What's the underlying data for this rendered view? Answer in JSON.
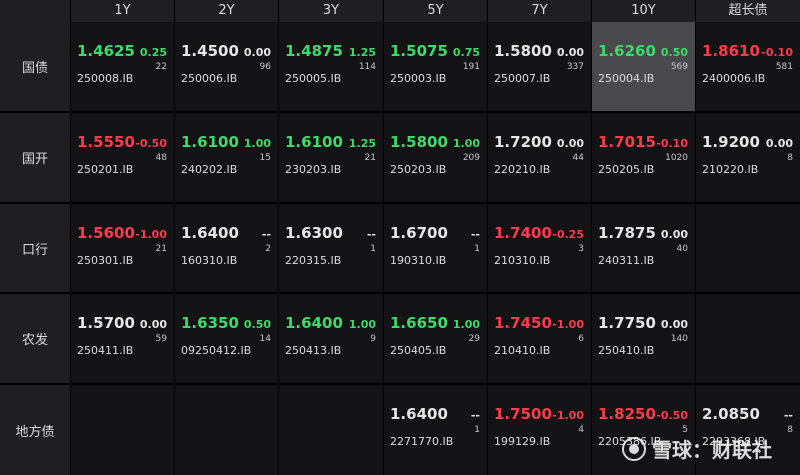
{
  "columns": [
    "1Y",
    "2Y",
    "3Y",
    "5Y",
    "7Y",
    "10Y",
    "超长债"
  ],
  "rows": [
    {
      "label": "国债",
      "cells": [
        {
          "yield": "1.4625",
          "change": "0.25",
          "volume": "22",
          "code": "250008.IB",
          "color": "g"
        },
        {
          "yield": "1.4500",
          "change": "0.00",
          "volume": "96",
          "code": "250006.IB",
          "color": "w"
        },
        {
          "yield": "1.4875",
          "change": "1.25",
          "volume": "114",
          "code": "250005.IB",
          "color": "g"
        },
        {
          "yield": "1.5075",
          "change": "0.75",
          "volume": "191",
          "code": "250003.IB",
          "color": "g"
        },
        {
          "yield": "1.5800",
          "change": "0.00",
          "volume": "337",
          "code": "250007.IB",
          "color": "w"
        },
        {
          "yield": "1.6260",
          "change": "0.50",
          "volume": "569",
          "code": "250004.IB",
          "color": "g",
          "selected": true
        },
        {
          "yield": "1.8610",
          "change": "-0.10",
          "volume": "581",
          "code": "2400006.IB",
          "color": "r"
        }
      ]
    },
    {
      "label": "国开",
      "cells": [
        {
          "yield": "1.5550",
          "change": "-0.50",
          "volume": "48",
          "code": "250201.IB",
          "color": "r"
        },
        {
          "yield": "1.6100",
          "change": "1.00",
          "volume": "15",
          "code": "240202.IB",
          "color": "g"
        },
        {
          "yield": "1.6100",
          "change": "1.25",
          "volume": "21",
          "code": "230203.IB",
          "color": "g"
        },
        {
          "yield": "1.5800",
          "change": "1.00",
          "volume": "209",
          "code": "250203.IB",
          "color": "g"
        },
        {
          "yield": "1.7200",
          "change": "0.00",
          "volume": "44",
          "code": "220210.IB",
          "color": "w"
        },
        {
          "yield": "1.7015",
          "change": "-0.10",
          "volume": "1020",
          "code": "250205.IB",
          "color": "r"
        },
        {
          "yield": "1.9200",
          "change": "0.00",
          "volume": "8",
          "code": "210220.IB",
          "color": "w"
        }
      ]
    },
    {
      "label": "口行",
      "cells": [
        {
          "yield": "1.5600",
          "change": "-1.00",
          "volume": "21",
          "code": "250301.IB",
          "color": "r"
        },
        {
          "yield": "1.6400",
          "change": "--",
          "volume": "2",
          "code": "160310.IB",
          "color": "w"
        },
        {
          "yield": "1.6300",
          "change": "--",
          "volume": "1",
          "code": "220315.IB",
          "color": "w"
        },
        {
          "yield": "1.6700",
          "change": "--",
          "volume": "1",
          "code": "190310.IB",
          "color": "w"
        },
        {
          "yield": "1.7400",
          "change": "-0.25",
          "volume": "3",
          "code": "210310.IB",
          "color": "r"
        },
        {
          "yield": "1.7875",
          "change": "0.00",
          "volume": "40",
          "code": "240311.IB",
          "color": "w"
        },
        null
      ]
    },
    {
      "label": "农发",
      "cells": [
        {
          "yield": "1.5700",
          "change": "0.00",
          "volume": "59",
          "code": "250411.IB",
          "color": "w"
        },
        {
          "yield": "1.6350",
          "change": "0.50",
          "volume": "14",
          "code": "09250412.IB",
          "color": "g"
        },
        {
          "yield": "1.6400",
          "change": "1.00",
          "volume": "9",
          "code": "250413.IB",
          "color": "g"
        },
        {
          "yield": "1.6650",
          "change": "1.00",
          "volume": "29",
          "code": "250405.IB",
          "color": "g"
        },
        {
          "yield": "1.7450",
          "change": "-1.00",
          "volume": "6",
          "code": "210410.IB",
          "color": "r"
        },
        {
          "yield": "1.7750",
          "change": "0.00",
          "volume": "140",
          "code": "250410.IB",
          "color": "w"
        },
        null
      ]
    },
    {
      "label": "地方债",
      "cells": [
        null,
        null,
        null,
        {
          "yield": "1.6400",
          "change": "--",
          "volume": "1",
          "code": "2271770.IB",
          "color": "w"
        },
        {
          "yield": "1.7500",
          "change": "-1.00",
          "volume": "4",
          "code": "199129.IB",
          "color": "r"
        },
        {
          "yield": "1.8250",
          "change": "-0.50",
          "volume": "5",
          "code": "2205386.IB",
          "color": "r"
        },
        {
          "yield": "2.0850",
          "change": "--",
          "volume": "8",
          "code": "2293368.IB",
          "color": "w"
        }
      ]
    }
  ],
  "watermark": {
    "text": "雪球：财联社"
  }
}
